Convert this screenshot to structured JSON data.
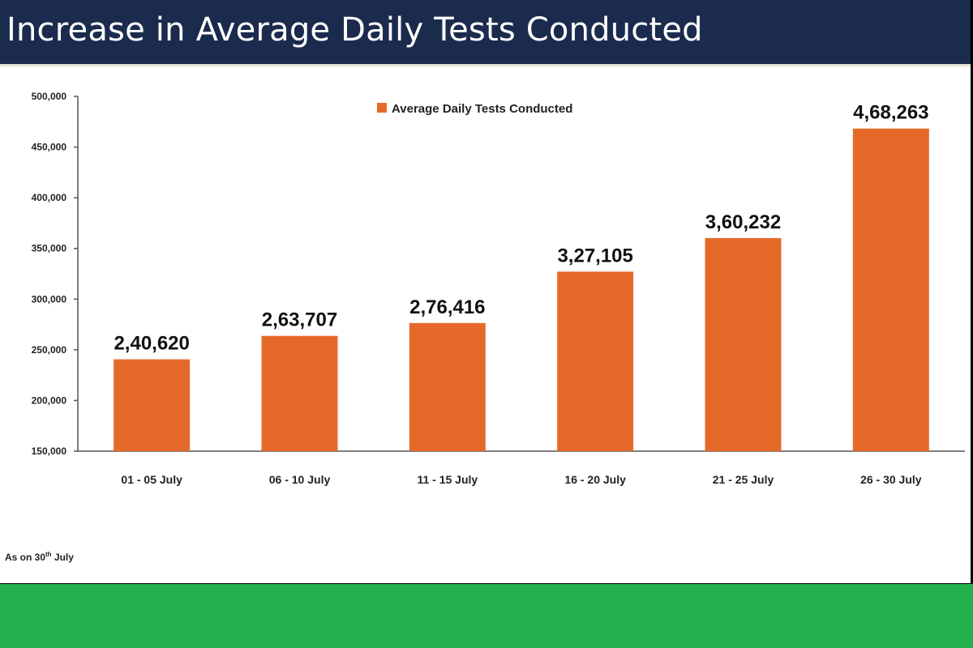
{
  "header": {
    "title": "Increase in Average Daily Tests Conducted"
  },
  "footnote": {
    "prefix": "As on 30",
    "superscript": "th",
    "suffix": " July"
  },
  "colors": {
    "bar": "#e56a2a",
    "header_bg": "#1b2b4e",
    "band": "#22b14c"
  },
  "chart_data": {
    "type": "bar",
    "title": "Increase in Average Daily Tests Conducted",
    "categories": [
      "01 - 05 July",
      "06 - 10 July",
      "11 - 15 July",
      "16 - 20 July",
      "21 - 25 July",
      "26 - 30 July"
    ],
    "series": [
      {
        "name": "Average Daily Tests Conducted",
        "values": [
          240620,
          263707,
          276416,
          327105,
          360232,
          468263
        ],
        "data_labels": [
          "2,40,620",
          "2,63,707",
          "2,76,416",
          "3,27,105",
          "3,60,232",
          "4,68,263"
        ]
      }
    ],
    "ylim": [
      150000,
      500000
    ],
    "yticks": [
      150000,
      200000,
      250000,
      300000,
      350000,
      400000,
      450000,
      500000
    ],
    "ytick_labels": [
      "150,000",
      "200,000",
      "250,000",
      "300,000",
      "350,000",
      "400,000",
      "450,000",
      "500,000"
    ],
    "legend": "top-center",
    "grid": false
  }
}
